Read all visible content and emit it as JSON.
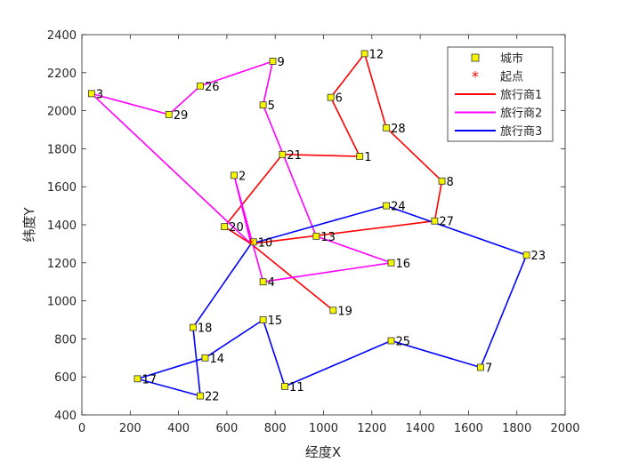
{
  "chart_data": {
    "type": "line",
    "title": "",
    "xlabel": "经度X",
    "ylabel": "纬度Y",
    "xlim": [
      0,
      2000
    ],
    "ylim": [
      400,
      2400
    ],
    "xticks": [
      0,
      200,
      400,
      600,
      800,
      1000,
      1200,
      1400,
      1600,
      1800,
      2000
    ],
    "yticks": [
      400,
      600,
      800,
      1000,
      1200,
      1400,
      1600,
      1800,
      2000,
      2200,
      2400
    ],
    "grid": false,
    "legend_position": "top-right",
    "legend": [
      {
        "label": "城市",
        "kind": "marker-square",
        "color": "#f5f500"
      },
      {
        "label": "起点",
        "kind": "marker-star",
        "color": "#ff0000"
      },
      {
        "label": "旅行商1",
        "kind": "line",
        "color": "#ff0000"
      },
      {
        "label": "旅行商2",
        "kind": "line",
        "color": "#ff00ff"
      },
      {
        "label": "旅行商3",
        "kind": "line",
        "color": "#0000ff"
      }
    ],
    "cities": [
      {
        "id": "1",
        "x": 1150,
        "y": 1760
      },
      {
        "id": "2",
        "x": 630,
        "y": 1660
      },
      {
        "id": "3",
        "x": 40,
        "y": 2090
      },
      {
        "id": "4",
        "x": 750,
        "y": 1100
      },
      {
        "id": "5",
        "x": 750,
        "y": 2030
      },
      {
        "id": "6",
        "x": 1030,
        "y": 2070
      },
      {
        "id": "7",
        "x": 1650,
        "y": 650
      },
      {
        "id": "8",
        "x": 1490,
        "y": 1630
      },
      {
        "id": "9",
        "x": 790,
        "y": 2260
      },
      {
        "id": "10",
        "x": 710,
        "y": 1310
      },
      {
        "id": "11",
        "x": 840,
        "y": 550
      },
      {
        "id": "12",
        "x": 1170,
        "y": 2300
      },
      {
        "id": "13",
        "x": 970,
        "y": 1340
      },
      {
        "id": "14",
        "x": 510,
        "y": 700
      },
      {
        "id": "15",
        "x": 750,
        "y": 900
      },
      {
        "id": "16",
        "x": 1280,
        "y": 1200
      },
      {
        "id": "17",
        "x": 230,
        "y": 590
      },
      {
        "id": "18",
        "x": 460,
        "y": 860
      },
      {
        "id": "19",
        "x": 1040,
        "y": 950
      },
      {
        "id": "20",
        "x": 590,
        "y": 1390
      },
      {
        "id": "21",
        "x": 830,
        "y": 1770
      },
      {
        "id": "22",
        "x": 490,
        "y": 500
      },
      {
        "id": "23",
        "x": 1840,
        "y": 1240
      },
      {
        "id": "24",
        "x": 1260,
        "y": 1500
      },
      {
        "id": "25",
        "x": 1280,
        "y": 790
      },
      {
        "id": "26",
        "x": 490,
        "y": 2130
      },
      {
        "id": "27",
        "x": 1460,
        "y": 1420
      },
      {
        "id": "28",
        "x": 1260,
        "y": 1910
      },
      {
        "id": "29",
        "x": 360,
        "y": 1980
      }
    ],
    "start": {
      "x": 700,
      "y": 1300
    },
    "series": [
      {
        "name": "旅行商1",
        "color": "#ff0000",
        "route": [
          "start",
          "19",
          "start",
          "20",
          "21",
          "1",
          "6",
          "12",
          "28",
          "8",
          "27",
          "start"
        ]
      },
      {
        "name": "旅行商2",
        "color": "#ff00ff",
        "route": [
          "start",
          "2",
          "4",
          "16",
          "13",
          "5",
          "9",
          "26",
          "29",
          "3",
          "start"
        ]
      },
      {
        "name": "旅行商3",
        "color": "#0000ff",
        "route": [
          "start",
          "24",
          "23",
          "7",
          "25",
          "11",
          "15",
          "14",
          "17",
          "22",
          "18",
          "start"
        ]
      }
    ]
  }
}
